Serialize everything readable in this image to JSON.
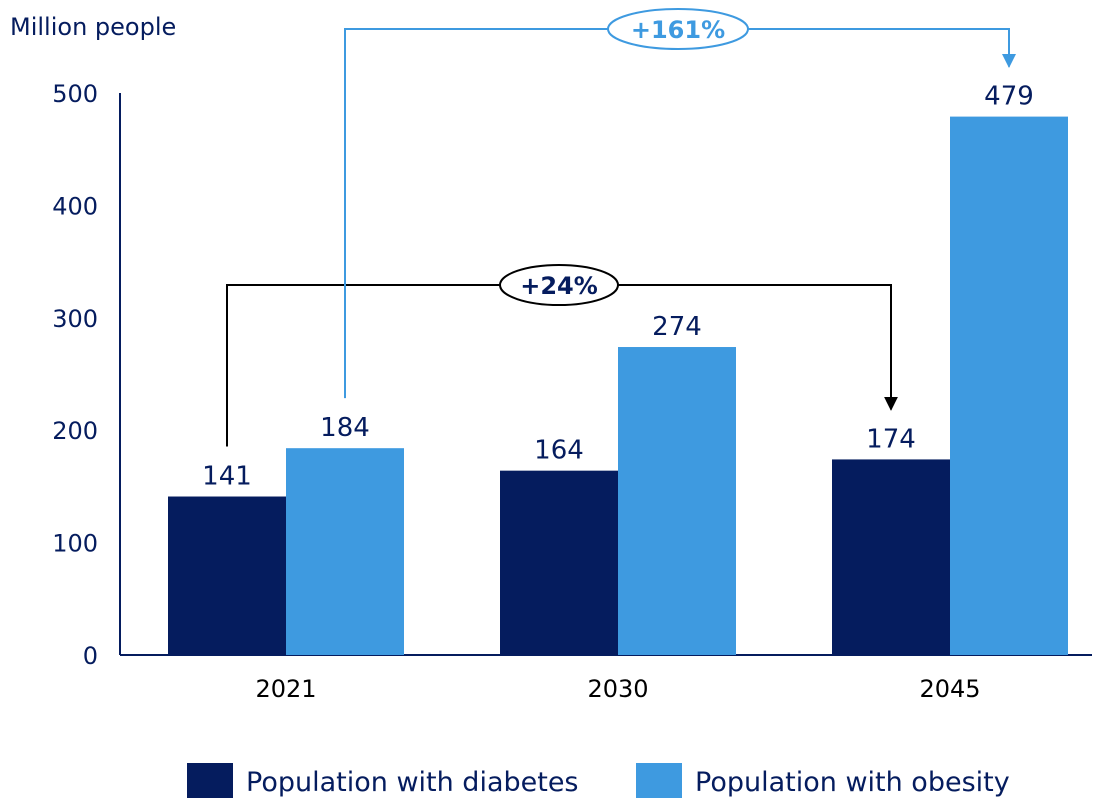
{
  "chart_data": {
    "type": "bar",
    "ylabel": "Million people",
    "xlabel": "",
    "title": "",
    "categories": [
      "2021",
      "2030",
      "2045"
    ],
    "ylim": [
      0,
      500
    ],
    "yticks": [
      0,
      100,
      200,
      300,
      400,
      500
    ],
    "grid": false,
    "legend_position": "bottom",
    "series": [
      {
        "name": "Population with diabetes",
        "values": [
          141,
          164,
          174
        ],
        "color": "#051c5e"
      },
      {
        "name": "Population with obesity",
        "values": [
          184,
          274,
          479
        ],
        "color": "#3e9ae0"
      }
    ],
    "annotations": [
      {
        "text": "+24%",
        "from": {
          "series": 0,
          "category": 0
        },
        "to": {
          "series": 0,
          "category": 2
        },
        "color": "#000000",
        "text_color": "#051c5e"
      },
      {
        "text": "+161%",
        "from": {
          "series": 1,
          "category": 0
        },
        "to": {
          "series": 1,
          "category": 2
        },
        "color": "#3e9ae0",
        "text_color": "#3e9ae0"
      }
    ],
    "axis_color": "#051c5e"
  }
}
